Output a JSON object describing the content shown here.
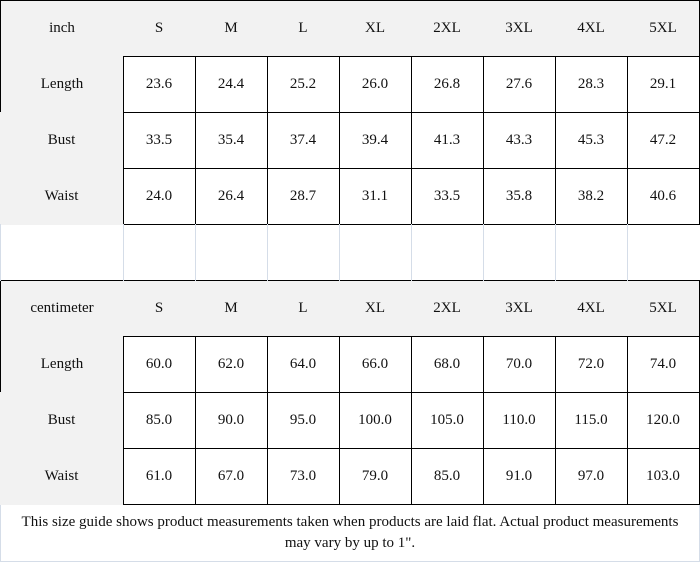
{
  "tables": [
    {
      "unit": "inch",
      "sizes": [
        "S",
        "M",
        "L",
        "XL",
        "2XL",
        "3XL",
        "4XL",
        "5XL"
      ],
      "rows": [
        {
          "label": "Length",
          "values": [
            "23.6",
            "24.4",
            "25.2",
            "26.0",
            "26.8",
            "27.6",
            "28.3",
            "29.1"
          ]
        },
        {
          "label": "Bust",
          "values": [
            "33.5",
            "35.4",
            "37.4",
            "39.4",
            "41.3",
            "43.3",
            "45.3",
            "47.2"
          ]
        },
        {
          "label": "Waist",
          "values": [
            "24.0",
            "26.4",
            "28.7",
            "31.1",
            "33.5",
            "35.8",
            "38.2",
            "40.6"
          ]
        }
      ]
    },
    {
      "unit": "centimeter",
      "sizes": [
        "S",
        "M",
        "L",
        "XL",
        "2XL",
        "3XL",
        "4XL",
        "5XL"
      ],
      "rows": [
        {
          "label": "Length",
          "values": [
            "60.0",
            "62.0",
            "64.0",
            "66.0",
            "68.0",
            "70.0",
            "72.0",
            "74.0"
          ]
        },
        {
          "label": "Bust",
          "values": [
            "85.0",
            "90.0",
            "95.0",
            "100.0",
            "105.0",
            "110.0",
            "115.0",
            "120.0"
          ]
        },
        {
          "label": "Waist",
          "values": [
            "61.0",
            "67.0",
            "73.0",
            "79.0",
            "85.0",
            "91.0",
            "97.0",
            "103.0"
          ]
        }
      ]
    }
  ],
  "note": "This size guide shows product measurements taken when products are laid flat. Actual product measurements may vary by up to 1\".",
  "colors": {
    "header_bg": "#f2f2f2",
    "border": "#000000",
    "spacer_border": "#d5dde8"
  }
}
